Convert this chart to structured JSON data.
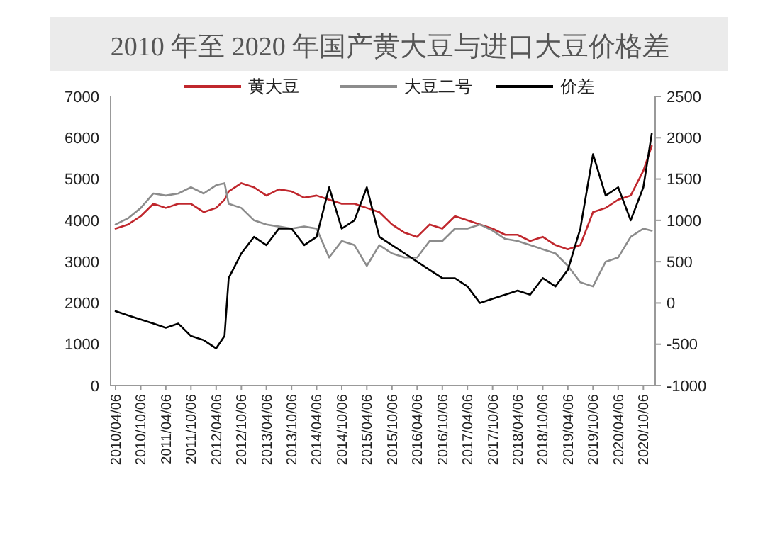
{
  "chart_data": {
    "type": "line",
    "title": "2010 年至 2020 年国产黄大豆与进口大豆价格差",
    "x": [
      "2010-04-06",
      "2010-07-06",
      "2010-10-06",
      "2011-01-06",
      "2011-04-06",
      "2011-07-06",
      "2011-10-06",
      "2012-01-06",
      "2012-04-06",
      "2012-06-06",
      "2012-07-06",
      "2012-10-06",
      "2013-01-06",
      "2013-04-06",
      "2013-07-06",
      "2013-10-06",
      "2014-01-06",
      "2014-04-06",
      "2014-07-06",
      "2014-10-06",
      "2015-01-06",
      "2015-04-06",
      "2015-07-06",
      "2015-10-06",
      "2016-01-06",
      "2016-04-06",
      "2016-07-06",
      "2016-10-06",
      "2017-01-06",
      "2017-04-06",
      "2017-07-06",
      "2017-10-06",
      "2018-01-06",
      "2018-04-06",
      "2018-07-06",
      "2018-10-06",
      "2019-01-06",
      "2019-04-06",
      "2019-07-06",
      "2019-10-06",
      "2020-01-06",
      "2020-04-06",
      "2020-07-06",
      "2020-10-06",
      "2020-12-06"
    ],
    "series": [
      {
        "name": "黄大豆",
        "color": "#c0272d",
        "values": [
          3800,
          3900,
          4100,
          4400,
          4300,
          4400,
          4400,
          4200,
          4300,
          4500,
          4700,
          4900,
          4800,
          4600,
          4750,
          4700,
          4550,
          4600,
          4500,
          4400,
          4400,
          4300,
          4200,
          3900,
          3700,
          3600,
          3900,
          3800,
          4100,
          4000,
          3900,
          3800,
          3650,
          3650,
          3500,
          3600,
          3400,
          3300,
          3400,
          4200,
          4300,
          4500,
          4600,
          5200,
          5800
        ]
      },
      {
        "name": "大豆二号",
        "color": "#8c8c8c",
        "values": [
          3900,
          4050,
          4300,
          4650,
          4600,
          4650,
          4800,
          4650,
          4850,
          4900,
          4400,
          4300,
          4000,
          3900,
          3850,
          3800,
          3850,
          3800,
          3100,
          3500,
          3400,
          2900,
          3400,
          3200,
          3100,
          3100,
          3500,
          3500,
          3800,
          3800,
          3900,
          3750,
          3550,
          3500,
          3400,
          3300,
          3200,
          2900,
          2500,
          2400,
          3000,
          3100,
          3600,
          3800,
          3750
        ]
      },
      {
        "name": "价差",
        "color": "#000000",
        "axis": "y2",
        "values": [
          -100,
          -150,
          -200,
          -250,
          -300,
          -250,
          -400,
          -450,
          -550,
          -400,
          300,
          600,
          800,
          700,
          900,
          900,
          700,
          800,
          1400,
          900,
          1000,
          1400,
          800,
          700,
          600,
          500,
          400,
          300,
          300,
          200,
          0,
          50,
          100,
          150,
          100,
          300,
          200,
          400,
          900,
          1800,
          1300,
          1400,
          1000,
          1400,
          2050
        ]
      }
    ],
    "ylim": [
      0,
      7000
    ],
    "yticks": [
      0,
      1000,
      2000,
      3000,
      4000,
      5000,
      6000,
      7000
    ],
    "y2lim": [
      -1000,
      2500
    ],
    "y2ticks": [
      -1000,
      -500,
      0,
      500,
      1000,
      1500,
      2000,
      2500
    ],
    "xlim": [
      "2010-03-01",
      "2020-12-31"
    ],
    "xticks": [
      {
        "value": "2010-04-06",
        "label": "2010/04/06"
      },
      {
        "value": "2010-10-06",
        "label": "2010/10/06"
      },
      {
        "value": "2011-04-06",
        "label": "2011/04/06"
      },
      {
        "value": "2011-10-06",
        "label": "2011/10/06"
      },
      {
        "value": "2012-04-06",
        "label": "2012/04/06"
      },
      {
        "value": "2012-10-06",
        "label": "2012/10/06"
      },
      {
        "value": "2013-04-06",
        "label": "2013/04/06"
      },
      {
        "value": "2013-10-06",
        "label": "2013/10/06"
      },
      {
        "value": "2014-04-06",
        "label": "2014/04/06"
      },
      {
        "value": "2014-10-06",
        "label": "2014/10/06"
      },
      {
        "value": "2015-04-06",
        "label": "2015/04/06"
      },
      {
        "value": "2015-10-06",
        "label": "2015/10/06"
      },
      {
        "value": "2016-04-06",
        "label": "2016/04/06"
      },
      {
        "value": "2016-10-06",
        "label": "2016/10/06"
      },
      {
        "value": "2017-04-06",
        "label": "2017/04/06"
      },
      {
        "value": "2017-10-06",
        "label": "2017/10/06"
      },
      {
        "value": "2018-04-06",
        "label": "2018/04/06"
      },
      {
        "value": "2018-10-06",
        "label": "2018/10/06"
      },
      {
        "value": "2019-04-06",
        "label": "2019/04/06"
      },
      {
        "value": "2019-10-06",
        "label": "2019/10/06"
      },
      {
        "value": "2020-04-06",
        "label": "2020/04/06"
      },
      {
        "value": "2020-10-06",
        "label": "2020/10/06"
      }
    ],
    "grid": false,
    "legend": "top",
    "line_style": "solid"
  }
}
